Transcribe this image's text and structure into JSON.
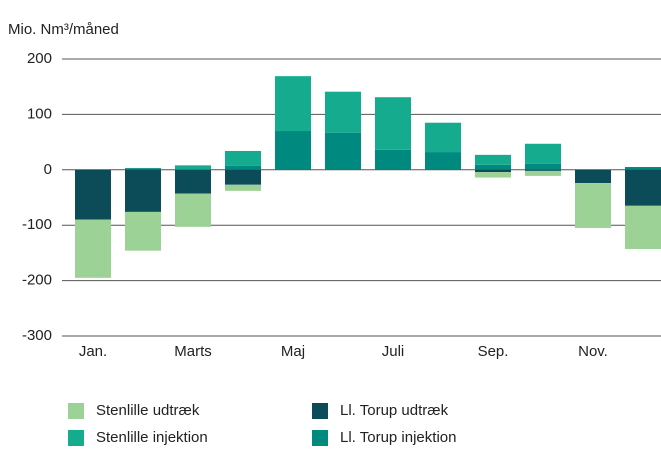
{
  "chart_data": {
    "type": "bar",
    "stacked": true,
    "y_label": "Mio. Nm³/måned",
    "categories": [
      "Jan.",
      null,
      "Marts",
      null,
      "Maj",
      null,
      "Juli",
      null,
      "Sep.",
      null,
      "Nov.",
      null
    ],
    "series": [
      {
        "name": "Stenlille udtræk",
        "color": "#9dd297",
        "values": [
          -105,
          -70,
          -60,
          -11,
          0,
          0,
          0,
          0,
          -10,
          -9,
          -81,
          -78
        ]
      },
      {
        "name": "Ll. Torup udtræk",
        "color": "#0c4c58",
        "values": [
          -90,
          -76,
          -43,
          -27,
          0,
          0,
          0,
          0,
          -4,
          -2,
          -24,
          -65
        ]
      },
      {
        "name": "Stenlille injektion",
        "color": "#14ab8f",
        "values": [
          0,
          0,
          8,
          27,
          99,
          74,
          95,
          53,
          18,
          36,
          0,
          0
        ]
      },
      {
        "name": "Ll. Torup injektion",
        "color": "#00897f",
        "values": [
          0,
          3,
          0,
          7,
          70,
          67,
          36,
          32,
          9,
          11,
          0,
          5
        ]
      }
    ],
    "ylim": [
      -300,
      200
    ],
    "yticks": [
      -300,
      -200,
      -100,
      0,
      100,
      200
    ],
    "grid": true
  }
}
